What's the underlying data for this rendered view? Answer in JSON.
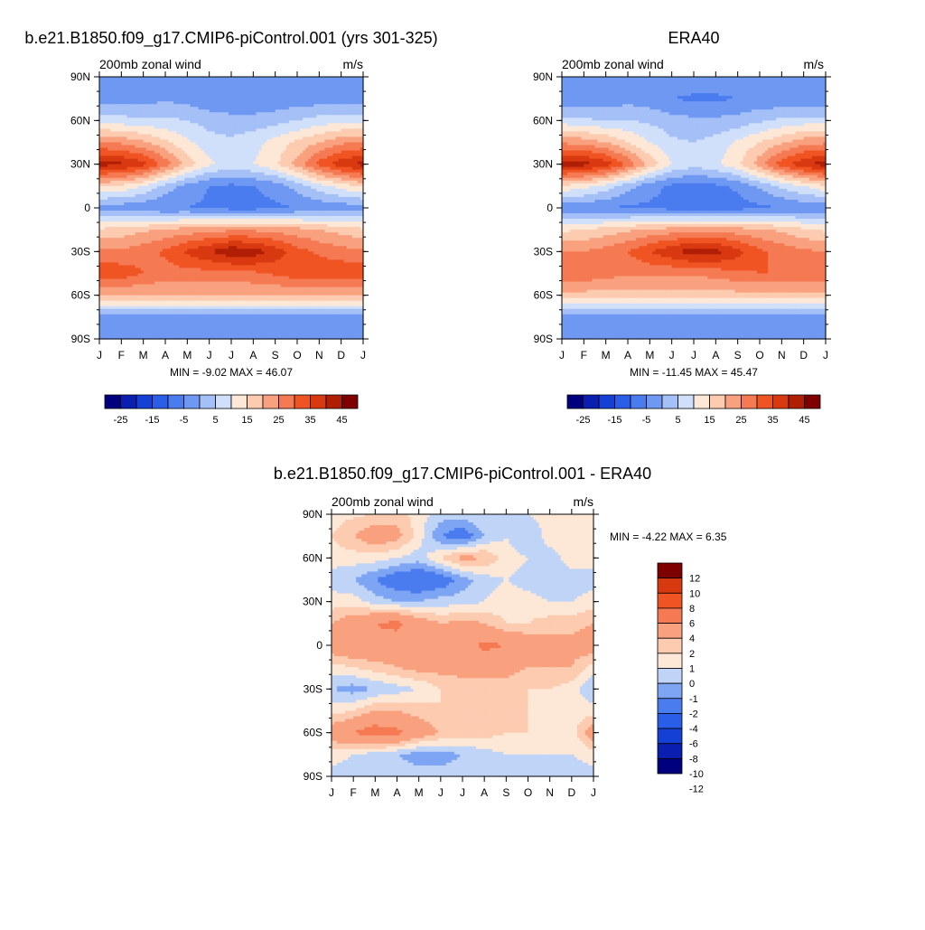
{
  "palettes": {
    "full": [
      "#00007f",
      "#0a1fb0",
      "#1440d6",
      "#2a5ee8",
      "#4a7cf0",
      "#6e98f2",
      "#a5bff7",
      "#d1e0fa",
      "#fde8d7",
      "#fccbb0",
      "#f9a07e",
      "#f57a53",
      "#f05423",
      "#d93910",
      "#b01e06",
      "#7f0000"
    ],
    "model_levels": [
      -30,
      -25,
      -20,
      -15,
      -10,
      -5,
      0,
      5,
      10,
      15,
      20,
      25,
      30,
      35,
      40,
      45,
      50
    ],
    "diff_levels": [
      -12,
      -10,
      -8,
      -6,
      -4,
      -2,
      -1,
      0,
      1,
      2,
      4,
      6,
      8,
      10,
      12
    ]
  },
  "months": [
    "J",
    "F",
    "M",
    "A",
    "M",
    "J",
    "J",
    "A",
    "S",
    "O",
    "N",
    "D",
    "J"
  ],
  "lat_ticks": [
    "90N",
    "60N",
    "30N",
    "0",
    "30S",
    "60S",
    "90S"
  ],
  "panels": [
    {
      "title": "b.e21.B1850.f09_g17.CMIP6-piControl.001 (yrs 301-325)",
      "left_label": "200mb zonal wind",
      "right_label": "m/s",
      "stats": "MIN =  -9.02 MAX =  46.07",
      "colorbar_labels": [
        "-25",
        "-15",
        "-5",
        "5",
        "15",
        "25",
        "35",
        "45"
      ]
    },
    {
      "title": "ERA40",
      "left_label": "200mb zonal wind",
      "right_label": "m/s",
      "stats": "MIN = -11.45 MAX =  45.47",
      "colorbar_labels": [
        "-25",
        "-15",
        "-5",
        "5",
        "15",
        "25",
        "35",
        "45"
      ]
    },
    {
      "title": "b.e21.B1850.f09_g17.CMIP6-piControl.001 - ERA40",
      "left_label": "200mb zonal wind",
      "right_label": "m/s",
      "stats": "MIN =  -4.22 MAX =   6.35",
      "colorbar_labels": [
        "12",
        "10",
        "8",
        "6",
        "4",
        "2",
        "1",
        "0",
        "-1",
        "-2",
        "-4",
        "-6",
        "-8",
        "-10",
        "-12"
      ]
    }
  ],
  "chart_data": [
    {
      "type": "heatmap",
      "title": "b.e21.B1850.f09_g17.CMIP6-piControl.001 (yrs 301-325)",
      "xlabel": "",
      "ylabel": "",
      "x_categories": [
        "J",
        "F",
        "M",
        "A",
        "M",
        "J",
        "J",
        "A",
        "S",
        "O",
        "N",
        "D",
        "J"
      ],
      "y_categories": [
        "90N",
        "75N",
        "60N",
        "45N",
        "30N",
        "15N",
        "0",
        "15S",
        "30S",
        "45S",
        "60S",
        "75S",
        "90S"
      ],
      "units": "m/s",
      "min": -9.02,
      "max": 46.07,
      "values": [
        [
          0,
          0,
          0,
          0,
          0,
          0,
          0,
          0,
          0,
          0,
          0,
          0,
          0
        ],
        [
          -3,
          -3,
          -2,
          -1,
          -2,
          -4,
          -5,
          -5,
          -4,
          -3,
          -3,
          -3,
          -3
        ],
        [
          8,
          7,
          6,
          6,
          5,
          3,
          2,
          2,
          3,
          5,
          7,
          8,
          8
        ],
        [
          25,
          24,
          21,
          16,
          11,
          7,
          6,
          8,
          12,
          16,
          20,
          24,
          25
        ],
        [
          42,
          41,
          37,
          28,
          18,
          11,
          8,
          10,
          14,
          22,
          32,
          38,
          42
        ],
        [
          16,
          14,
          10,
          3,
          -2,
          -5,
          -6,
          -5,
          -3,
          2,
          8,
          12,
          16
        ],
        [
          -3,
          -3,
          -4,
          -5,
          -5,
          -6,
          -7,
          -7,
          -6,
          -5,
          -4,
          -3,
          -3
        ],
        [
          16,
          17,
          19,
          21,
          22,
          23,
          24,
          24,
          23,
          22,
          20,
          18,
          16
        ],
        [
          26,
          26,
          28,
          31,
          36,
          40,
          44,
          43,
          38,
          32,
          29,
          27,
          26
        ],
        [
          34,
          33,
          30,
          28,
          28,
          28,
          28,
          29,
          31,
          33,
          34,
          34,
          34
        ],
        [
          20,
          20,
          20,
          20,
          20,
          20,
          20,
          20,
          20,
          20,
          20,
          20,
          20
        ],
        [
          -2,
          -2,
          -2,
          -2,
          -2,
          -2,
          -2,
          -2,
          -2,
          -2,
          -2,
          -2,
          -2
        ],
        [
          -1,
          -1,
          -1,
          -1,
          -1,
          -1,
          -1,
          -1,
          -1,
          -1,
          -1,
          -1,
          -1
        ]
      ]
    },
    {
      "type": "heatmap",
      "title": "ERA40",
      "xlabel": "",
      "ylabel": "",
      "x_categories": [
        "J",
        "F",
        "M",
        "A",
        "M",
        "J",
        "J",
        "A",
        "S",
        "O",
        "N",
        "D",
        "J"
      ],
      "y_categories": [
        "90N",
        "75N",
        "60N",
        "45N",
        "30N",
        "15N",
        "0",
        "15S",
        "30S",
        "45S",
        "60S",
        "75S",
        "90S"
      ],
      "units": "m/s",
      "min": -11.45,
      "max": 45.47,
      "values": [
        [
          -1,
          -1,
          -1,
          -1,
          -1,
          -1,
          -1,
          -1,
          -1,
          -1,
          -1,
          -1,
          -1
        ],
        [
          -4,
          -4,
          -3,
          -2,
          -3,
          -5,
          -6,
          -6,
          -5,
          -4,
          -4,
          -4,
          -4
        ],
        [
          7,
          6,
          5,
          5,
          4,
          2,
          1,
          1,
          2,
          4,
          6,
          7,
          7
        ],
        [
          24,
          23,
          20,
          15,
          10,
          6,
          5,
          7,
          11,
          15,
          19,
          23,
          24
        ],
        [
          43,
          42,
          38,
          29,
          18,
          10,
          7,
          9,
          14,
          23,
          33,
          39,
          43
        ],
        [
          14,
          12,
          8,
          2,
          -3,
          -6,
          -7,
          -6,
          -4,
          1,
          6,
          10,
          14
        ],
        [
          -4,
          -4,
          -5,
          -6,
          -6,
          -7,
          -9,
          -8,
          -7,
          -6,
          -5,
          -4,
          -4
        ],
        [
          14,
          15,
          17,
          19,
          21,
          22,
          23,
          23,
          22,
          21,
          19,
          16,
          14
        ],
        [
          25,
          25,
          27,
          30,
          35,
          39,
          43,
          42,
          37,
          31,
          28,
          26,
          25
        ],
        [
          30,
          29,
          27,
          26,
          26,
          26,
          26,
          27,
          29,
          30,
          30,
          30,
          30
        ],
        [
          18,
          18,
          18,
          18,
          18,
          18,
          18,
          18,
          18,
          18,
          18,
          18,
          18
        ],
        [
          -3,
          -3,
          -3,
          -3,
          -3,
          -3,
          -3,
          -3,
          -3,
          -3,
          -3,
          -3,
          -3
        ],
        [
          -2,
          -2,
          -2,
          -2,
          -2,
          -2,
          -2,
          -2,
          -2,
          -2,
          -2,
          -2,
          -2
        ]
      ]
    },
    {
      "type": "heatmap",
      "title": "b.e21.B1850.f09_g17.CMIP6-piControl.001 - ERA40",
      "xlabel": "",
      "ylabel": "",
      "x_categories": [
        "J",
        "F",
        "M",
        "A",
        "M",
        "J",
        "J",
        "A",
        "S",
        "O",
        "N",
        "D",
        "J"
      ],
      "y_categories": [
        "90N",
        "75N",
        "60N",
        "45N",
        "30N",
        "15N",
        "0",
        "15S",
        "30S",
        "45S",
        "60S",
        "75S",
        "90S"
      ],
      "units": "m/s",
      "min": -4.22,
      "max": 6.35,
      "values": [
        [
          0.5,
          0.8,
          1,
          1.5,
          0.5,
          -0.5,
          -0.5,
          0,
          0,
          0,
          0.5,
          0.5,
          0.5
        ],
        [
          1,
          2,
          3,
          2.5,
          0.5,
          -2,
          -3,
          -1,
          0,
          -1,
          0.5,
          0.5,
          1
        ],
        [
          0.5,
          0.5,
          0.5,
          0,
          -0.5,
          1,
          2.5,
          2,
          0.5,
          0,
          -0.5,
          0.5,
          0.5
        ],
        [
          -0.5,
          -1,
          -2,
          -3,
          -3.5,
          -3,
          -1.5,
          -0.5,
          0,
          -0.5,
          -1,
          -0.5,
          -0.5
        ],
        [
          0.5,
          0.5,
          -0.5,
          -1,
          -1,
          -0.5,
          -0.5,
          0,
          0.5,
          0.5,
          0,
          0,
          0.5
        ],
        [
          2,
          3,
          4,
          4.5,
          3,
          2,
          2.5,
          2,
          1,
          1,
          1.5,
          1.5,
          2
        ],
        [
          3,
          3.5,
          3.5,
          3,
          2.5,
          2.5,
          3,
          4.5,
          4,
          3,
          2.5,
          2.5,
          3
        ],
        [
          0.5,
          1,
          1.5,
          2,
          2.5,
          2.5,
          2.5,
          2.5,
          2.5,
          2,
          2,
          2,
          0.5
        ],
        [
          -1,
          -1.5,
          -1,
          -0.5,
          0,
          1,
          1.5,
          1.5,
          1.5,
          1,
          1,
          0.5,
          -1
        ],
        [
          0.5,
          1,
          2,
          2,
          1.5,
          1,
          1,
          1,
          1,
          1,
          0.5,
          0.5,
          0.5
        ],
        [
          3,
          4,
          5,
          4.5,
          3,
          2,
          1.5,
          1.5,
          1,
          1,
          0.5,
          0.5,
          3
        ],
        [
          0.5,
          0,
          -0.5,
          -1,
          -1.5,
          -1.5,
          -1,
          -0.5,
          0,
          0,
          0,
          0,
          0.5
        ],
        [
          -0.5,
          -0.5,
          -0.5,
          -0.5,
          -0.5,
          -0.5,
          -0.5,
          -0.5,
          -0.5,
          -0.5,
          -0.5,
          -0.5,
          -0.5
        ]
      ]
    }
  ]
}
